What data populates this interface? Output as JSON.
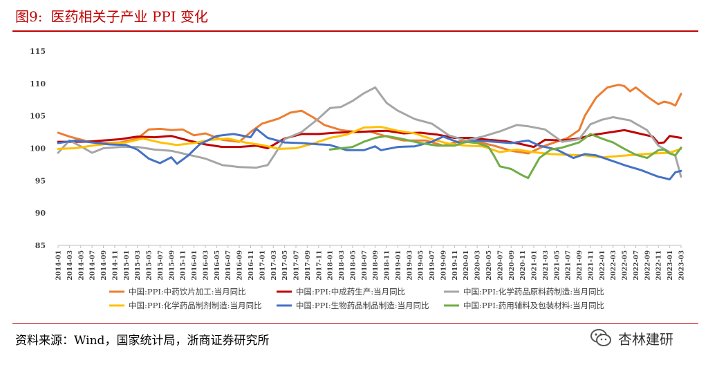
{
  "header": {
    "figure_number": "图9:",
    "title": "医药相关子产业 PPI 变化"
  },
  "footer": {
    "source": "资料来源：Wind，国家统计局，浙商证券研究所",
    "watermark": "杏林建研",
    "watermark_icon": "wechat-icon"
  },
  "chart_data": {
    "type": "line",
    "title": "",
    "xlabel": "",
    "ylabel": "",
    "ylim": [
      85,
      115
    ],
    "yticks": [
      85,
      90,
      95,
      100,
      105,
      110,
      115
    ],
    "grid": false,
    "legend_position": "bottom",
    "x_start": "2014-01",
    "x_end": "2023-03",
    "xtick_labels": [
      "2014-01",
      "2014-03",
      "2014-05",
      "2014-07",
      "2014-09",
      "2014-11",
      "2015-01",
      "2015-03",
      "2015-05",
      "2015-07",
      "2015-09",
      "2015-11",
      "2016-01",
      "2016-03",
      "2016-05",
      "2016-07",
      "2016-09",
      "2016-11",
      "2017-01",
      "2017-03",
      "2017-05",
      "2017-07",
      "2017-09",
      "2017-11",
      "2018-01",
      "2018-03",
      "2018-05",
      "2018-07",
      "2018-09",
      "2018-11",
      "2019-01",
      "2019-03",
      "2019-05",
      "2019-07",
      "2019-09",
      "2019-11",
      "2020-01",
      "2020-03",
      "2020-05",
      "2020-07",
      "2020-09",
      "2020-11",
      "2021-01",
      "2021-03",
      "2021-05",
      "2021-07",
      "2021-09",
      "2021-11",
      "2022-01",
      "2022-03",
      "2022-05",
      "2022-07",
      "2022-09",
      "2022-11",
      "2023-01",
      "2023-03"
    ],
    "series": [
      {
        "name": "中国:PPI:中药饮片加工:当月同比",
        "color": "#ed7d31",
        "start": "2014-01",
        "knots": [
          [
            "2014-01",
            102.4
          ],
          [
            "2014-03",
            101.8
          ],
          [
            "2014-06",
            101.1
          ],
          [
            "2014-09",
            100.8
          ],
          [
            "2014-12",
            100.9
          ],
          [
            "2015-03",
            101.5
          ],
          [
            "2015-05",
            102.9
          ],
          [
            "2015-07",
            103.0
          ],
          [
            "2015-09",
            102.8
          ],
          [
            "2015-11",
            102.9
          ],
          [
            "2016-01",
            102.0
          ],
          [
            "2016-03",
            102.3
          ],
          [
            "2016-06",
            101.3
          ],
          [
            "2016-09",
            101.0
          ],
          [
            "2016-11",
            102.5
          ],
          [
            "2017-01",
            103.8
          ],
          [
            "2017-04",
            104.6
          ],
          [
            "2017-06",
            105.5
          ],
          [
            "2017-08",
            105.8
          ],
          [
            "2017-10",
            104.8
          ],
          [
            "2017-12",
            103.6
          ],
          [
            "2018-03",
            102.8
          ],
          [
            "2018-06",
            102.5
          ],
          [
            "2018-08",
            102.6
          ],
          [
            "2018-11",
            101.8
          ],
          [
            "2019-02",
            101.2
          ],
          [
            "2019-06",
            101.2
          ],
          [
            "2019-09",
            100.4
          ],
          [
            "2019-12",
            101.1
          ],
          [
            "2020-03",
            101.0
          ],
          [
            "2020-06",
            100.4
          ],
          [
            "2020-09",
            99.6
          ],
          [
            "2020-12",
            99.2
          ],
          [
            "2021-03",
            100.4
          ],
          [
            "2021-05",
            101.0
          ],
          [
            "2021-07",
            101.6
          ],
          [
            "2021-09",
            102.8
          ],
          [
            "2021-10",
            105.0
          ],
          [
            "2021-12",
            107.8
          ],
          [
            "2022-02",
            109.4
          ],
          [
            "2022-04",
            109.8
          ],
          [
            "2022-05",
            109.6
          ],
          [
            "2022-06",
            108.8
          ],
          [
            "2022-07",
            109.4
          ],
          [
            "2022-09",
            108.0
          ],
          [
            "2022-11",
            106.8
          ],
          [
            "2022-12",
            107.2
          ],
          [
            "2023-01",
            107.0
          ],
          [
            "2023-02",
            106.6
          ],
          [
            "2023-03",
            108.4
          ]
        ]
      },
      {
        "name": "中国:PPI:中成药生产:当月同比",
        "color": "#c00000",
        "start": "2014-01",
        "knots": [
          [
            "2014-01",
            101.0
          ],
          [
            "2014-06",
            101.0
          ],
          [
            "2014-12",
            101.4
          ],
          [
            "2015-03",
            101.8
          ],
          [
            "2015-06",
            101.7
          ],
          [
            "2015-09",
            101.9
          ],
          [
            "2015-12",
            101.2
          ],
          [
            "2016-03",
            100.6
          ],
          [
            "2016-06",
            100.2
          ],
          [
            "2016-09",
            100.2
          ],
          [
            "2016-12",
            100.4
          ],
          [
            "2017-02",
            100.0
          ],
          [
            "2017-05",
            101.5
          ],
          [
            "2017-08",
            102.2
          ],
          [
            "2017-11",
            102.2
          ],
          [
            "2018-02",
            102.4
          ],
          [
            "2018-05",
            102.5
          ],
          [
            "2018-08",
            102.6
          ],
          [
            "2018-11",
            102.7
          ],
          [
            "2019-02",
            102.3
          ],
          [
            "2019-05",
            102.4
          ],
          [
            "2019-08",
            102.1
          ],
          [
            "2019-11",
            101.6
          ],
          [
            "2020-02",
            101.6
          ],
          [
            "2020-05",
            101.3
          ],
          [
            "2020-08",
            101.1
          ],
          [
            "2020-11",
            100.6
          ],
          [
            "2021-01",
            100.2
          ],
          [
            "2021-03",
            101.3
          ],
          [
            "2021-06",
            101.2
          ],
          [
            "2021-09",
            101.5
          ],
          [
            "2021-11",
            102.0
          ],
          [
            "2022-02",
            102.4
          ],
          [
            "2022-05",
            102.8
          ],
          [
            "2022-08",
            102.2
          ],
          [
            "2022-10",
            101.8
          ],
          [
            "2022-11",
            100.8
          ],
          [
            "2022-12",
            100.9
          ],
          [
            "2023-01",
            101.9
          ],
          [
            "2023-03",
            101.6
          ]
        ]
      },
      {
        "name": "中国:PPI:化学药品原料药制造:当月同比",
        "color": "#a6a6a6",
        "start": "2014-01",
        "knots": [
          [
            "2014-01",
            99.3
          ],
          [
            "2014-03",
            101.2
          ],
          [
            "2014-05",
            100.3
          ],
          [
            "2014-07",
            99.3
          ],
          [
            "2014-09",
            100.0
          ],
          [
            "2014-12",
            100.2
          ],
          [
            "2015-03",
            100.2
          ],
          [
            "2015-06",
            99.8
          ],
          [
            "2015-09",
            99.6
          ],
          [
            "2015-12",
            99.0
          ],
          [
            "2016-03",
            98.4
          ],
          [
            "2016-06",
            97.4
          ],
          [
            "2016-09",
            97.1
          ],
          [
            "2016-12",
            97.0
          ],
          [
            "2017-02",
            97.4
          ],
          [
            "2017-05",
            101.4
          ],
          [
            "2017-08",
            102.5
          ],
          [
            "2017-11",
            104.6
          ],
          [
            "2018-01",
            106.2
          ],
          [
            "2018-03",
            106.4
          ],
          [
            "2018-05",
            107.3
          ],
          [
            "2018-07",
            108.5
          ],
          [
            "2018-09",
            109.4
          ],
          [
            "2018-11",
            107.0
          ],
          [
            "2019-01",
            105.8
          ],
          [
            "2019-04",
            104.5
          ],
          [
            "2019-07",
            103.8
          ],
          [
            "2019-10",
            102.0
          ],
          [
            "2020-01",
            101.2
          ],
          [
            "2020-04",
            101.8
          ],
          [
            "2020-07",
            102.6
          ],
          [
            "2020-10",
            103.6
          ],
          [
            "2020-12",
            103.4
          ],
          [
            "2021-03",
            102.9
          ],
          [
            "2021-06",
            101.0
          ],
          [
            "2021-09",
            101.4
          ],
          [
            "2021-11",
            103.7
          ],
          [
            "2022-01",
            104.4
          ],
          [
            "2022-03",
            104.8
          ],
          [
            "2022-06",
            104.3
          ],
          [
            "2022-09",
            102.8
          ],
          [
            "2022-11",
            100.4
          ],
          [
            "2023-01",
            99.4
          ],
          [
            "2023-02",
            98.8
          ],
          [
            "2023-03",
            95.6
          ]
        ]
      },
      {
        "name": "中国:PPI:化学药品制剂制造:当月同比",
        "color": "#ffc000",
        "start": "2014-01",
        "knots": [
          [
            "2014-01",
            99.9
          ],
          [
            "2014-04",
            100.0
          ],
          [
            "2014-07",
            100.4
          ],
          [
            "2014-10",
            100.7
          ],
          [
            "2015-01",
            100.9
          ],
          [
            "2015-04",
            101.5
          ],
          [
            "2015-07",
            100.9
          ],
          [
            "2015-10",
            100.5
          ],
          [
            "2016-01",
            100.8
          ],
          [
            "2016-04",
            101.3
          ],
          [
            "2016-07",
            101.5
          ],
          [
            "2016-10",
            100.9
          ],
          [
            "2017-01",
            100.5
          ],
          [
            "2017-04",
            99.9
          ],
          [
            "2017-07",
            100.0
          ],
          [
            "2017-10",
            100.7
          ],
          [
            "2018-01",
            101.6
          ],
          [
            "2018-04",
            102.1
          ],
          [
            "2018-07",
            103.2
          ],
          [
            "2018-10",
            103.3
          ],
          [
            "2019-01",
            102.7
          ],
          [
            "2019-04",
            102.3
          ],
          [
            "2019-07",
            101.4
          ],
          [
            "2019-10",
            100.7
          ],
          [
            "2020-01",
            100.4
          ],
          [
            "2020-04",
            100.3
          ],
          [
            "2020-07",
            99.4
          ],
          [
            "2020-10",
            99.8
          ],
          [
            "2021-01",
            99.4
          ],
          [
            "2021-04",
            99.1
          ],
          [
            "2021-07",
            99.0
          ],
          [
            "2021-10",
            98.9
          ],
          [
            "2022-01",
            98.6
          ],
          [
            "2022-04",
            98.8
          ],
          [
            "2022-07",
            99.0
          ],
          [
            "2022-10",
            99.2
          ],
          [
            "2023-01",
            99.3
          ],
          [
            "2023-03",
            99.9
          ]
        ]
      },
      {
        "name": "中国:PPI:生物药品制品制造:当月同比",
        "color": "#4472c4",
        "start": "2014-01",
        "knots": [
          [
            "2014-01",
            100.8
          ],
          [
            "2014-04",
            101.2
          ],
          [
            "2014-07",
            100.9
          ],
          [
            "2014-10",
            100.6
          ],
          [
            "2015-01",
            100.5
          ],
          [
            "2015-03",
            99.8
          ],
          [
            "2015-05",
            98.4
          ],
          [
            "2015-07",
            97.7
          ],
          [
            "2015-09",
            98.6
          ],
          [
            "2015-10",
            97.6
          ],
          [
            "2015-12",
            98.9
          ],
          [
            "2016-02",
            100.6
          ],
          [
            "2016-05",
            101.9
          ],
          [
            "2016-08",
            102.2
          ],
          [
            "2016-11",
            101.7
          ],
          [
            "2016-12",
            103.0
          ],
          [
            "2017-02",
            101.6
          ],
          [
            "2017-05",
            100.9
          ],
          [
            "2017-08",
            100.8
          ],
          [
            "2017-11",
            100.6
          ],
          [
            "2018-01",
            100.5
          ],
          [
            "2018-04",
            99.7
          ],
          [
            "2018-07",
            99.7
          ],
          [
            "2018-09",
            100.3
          ],
          [
            "2018-10",
            99.7
          ],
          [
            "2019-01",
            100.2
          ],
          [
            "2019-04",
            100.3
          ],
          [
            "2019-07",
            101.0
          ],
          [
            "2019-09",
            101.8
          ],
          [
            "2019-12",
            100.8
          ],
          [
            "2020-03",
            101.2
          ],
          [
            "2020-06",
            101.0
          ],
          [
            "2020-09",
            100.8
          ],
          [
            "2020-12",
            101.2
          ],
          [
            "2021-02",
            100.4
          ],
          [
            "2021-05",
            99.8
          ],
          [
            "2021-08",
            98.5
          ],
          [
            "2021-10",
            99.1
          ],
          [
            "2021-12",
            98.9
          ],
          [
            "2022-02",
            98.3
          ],
          [
            "2022-05",
            97.4
          ],
          [
            "2022-08",
            96.6
          ],
          [
            "2022-11",
            95.6
          ],
          [
            "2023-01",
            95.2
          ],
          [
            "2023-02",
            96.3
          ],
          [
            "2023-03",
            96.5
          ]
        ]
      },
      {
        "name": "中国:PPI:药用辅料及包装材料:当月同比",
        "color": "#70ad47",
        "start": "2018-01",
        "knots": [
          [
            "2018-01",
            99.8
          ],
          [
            "2018-03",
            100.0
          ],
          [
            "2018-05",
            100.2
          ],
          [
            "2018-07",
            101.0
          ],
          [
            "2018-09",
            101.6
          ],
          [
            "2018-11",
            101.9
          ],
          [
            "2019-02",
            101.4
          ],
          [
            "2019-05",
            100.8
          ],
          [
            "2019-08",
            100.4
          ],
          [
            "2019-11",
            100.4
          ],
          [
            "2020-01",
            101.0
          ],
          [
            "2020-03",
            100.8
          ],
          [
            "2020-05",
            100.2
          ],
          [
            "2020-06",
            98.8
          ],
          [
            "2020-07",
            97.2
          ],
          [
            "2020-09",
            96.8
          ],
          [
            "2020-11",
            95.8
          ],
          [
            "2020-12",
            95.4
          ],
          [
            "2021-02",
            98.5
          ],
          [
            "2021-04",
            99.8
          ],
          [
            "2021-06",
            100.1
          ],
          [
            "2021-09",
            100.9
          ],
          [
            "2021-11",
            102.2
          ],
          [
            "2022-01",
            101.5
          ],
          [
            "2022-03",
            100.9
          ],
          [
            "2022-05",
            99.9
          ],
          [
            "2022-07",
            99.0
          ],
          [
            "2022-09",
            98.5
          ],
          [
            "2022-11",
            99.7
          ],
          [
            "2022-12",
            99.8
          ],
          [
            "2023-01",
            99.2
          ],
          [
            "2023-02",
            98.9
          ],
          [
            "2023-03",
            100.1
          ]
        ]
      }
    ]
  }
}
